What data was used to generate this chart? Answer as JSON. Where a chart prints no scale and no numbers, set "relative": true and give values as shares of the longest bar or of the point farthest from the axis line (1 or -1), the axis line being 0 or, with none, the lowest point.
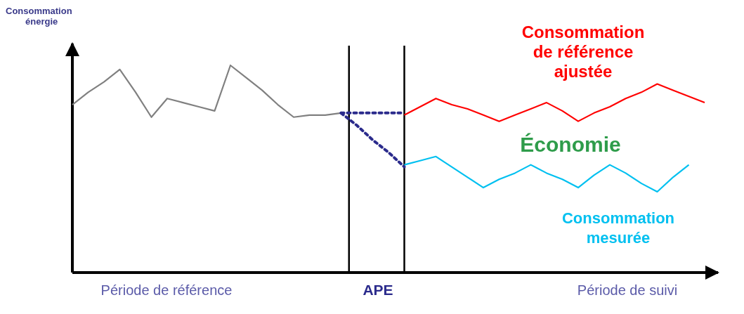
{
  "chart_data": {
    "type": "line",
    "relative": true,
    "ylabel": "Consommation énergie",
    "categories": [
      null,
      null,
      null,
      null,
      null,
      null,
      null,
      null,
      null,
      null,
      null,
      null,
      null,
      null,
      null,
      null,
      null,
      null,
      null,
      null,
      null,
      null,
      null,
      null,
      null,
      null,
      null,
      null,
      null,
      null,
      null,
      null,
      null,
      null,
      null,
      null,
      null,
      null,
      null,
      null,
      null
    ],
    "series": [
      {
        "color": "#808080",
        "values": [
          0.81,
          0.87,
          0.92,
          0.98,
          0.87,
          0.75,
          0.84,
          0.82,
          0.8,
          0.78,
          1.0,
          0.94,
          0.88,
          0.81,
          0.75,
          0.76,
          0.76,
          0.77,
          null,
          null,
          null,
          null,
          null,
          null,
          null,
          null,
          null,
          null,
          null,
          null,
          null,
          null,
          null,
          null,
          null,
          null,
          null,
          null,
          null,
          null,
          null
        ]
      },
      {
        "color": "#2b2b8c",
        "line_style": "dotted",
        "values": [
          null,
          null,
          null,
          null,
          null,
          null,
          null,
          null,
          null,
          null,
          null,
          null,
          null,
          null,
          null,
          null,
          null,
          0.77,
          0.77,
          0.77,
          0.77,
          0.77,
          null,
          null,
          null,
          null,
          null,
          null,
          null,
          null,
          null,
          null,
          null,
          null,
          null,
          null,
          null,
          null,
          null,
          null,
          null
        ]
      },
      {
        "color": "#2b2b8c",
        "line_style": "dotted",
        "values": [
          null,
          null,
          null,
          null,
          null,
          null,
          null,
          null,
          null,
          null,
          null,
          null,
          null,
          null,
          null,
          null,
          null,
          0.77,
          0.71,
          0.64,
          0.58,
          0.51,
          null,
          null,
          null,
          null,
          null,
          null,
          null,
          null,
          null,
          null,
          null,
          null,
          null,
          null,
          null,
          null,
          null,
          null,
          null
        ]
      },
      {
        "name": "Consommation de référence ajustée",
        "color": "#ff0000",
        "values": [
          null,
          null,
          null,
          null,
          null,
          null,
          null,
          null,
          null,
          null,
          null,
          null,
          null,
          null,
          null,
          null,
          null,
          null,
          null,
          null,
          null,
          0.76,
          0.8,
          0.84,
          0.81,
          0.79,
          0.76,
          0.73,
          0.76,
          0.79,
          0.82,
          0.78,
          0.73,
          0.77,
          0.8,
          0.84,
          0.87,
          0.91,
          0.88,
          0.85,
          0.82
        ]
      },
      {
        "name": "Consommation mesurée",
        "color": "#00c0f0",
        "values": [
          null,
          null,
          null,
          null,
          null,
          null,
          null,
          null,
          null,
          null,
          null,
          null,
          null,
          null,
          null,
          null,
          null,
          null,
          null,
          null,
          null,
          0.52,
          0.54,
          0.56,
          0.51,
          0.46,
          0.41,
          0.45,
          0.48,
          0.52,
          0.48,
          0.45,
          0.41,
          0.47,
          0.52,
          0.48,
          0.43,
          0.39,
          0.46,
          0.52,
          null
        ]
      }
    ],
    "annotations": [
      "Économie",
      "Période de référence",
      "APE",
      "Période de suivi"
    ]
  }
}
